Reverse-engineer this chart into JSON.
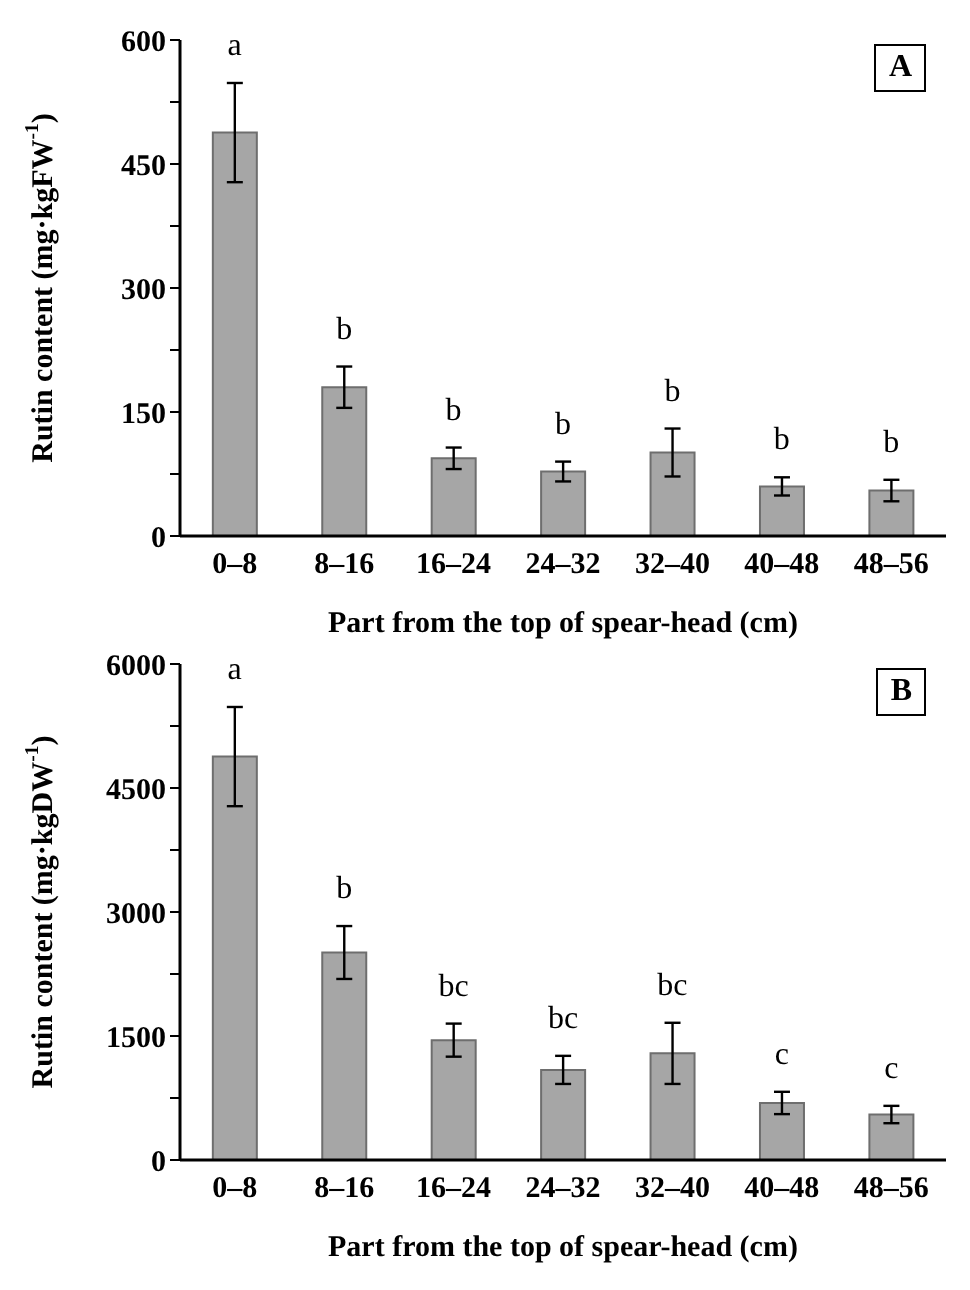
{
  "chart_data": [
    {
      "type": "bar",
      "title": "A",
      "xlabel": "Part from the top of spear-head (cm)",
      "ylabel": "Rutin content (mg·kgFW$^{-1}$)",
      "categories": [
        "0–8",
        "8–16",
        "16–24",
        "24–32",
        "32–40",
        "40–48",
        "48–56"
      ],
      "values": [
        488,
        180,
        94,
        78,
        101,
        60,
        55
      ],
      "errors": [
        60,
        25,
        13,
        12,
        29,
        11,
        13
      ],
      "color": "#a6a6a6",
      "ylim": [
        0,
        600
      ],
      "yticks": [
        0,
        {
          "value": 75,
          "label": null
        },
        150,
        {
          "value": 225,
          "label": null
        },
        300,
        {
          "value": 375,
          "label": null
        },
        450,
        {
          "value": 525,
          "label": null
        },
        600
      ],
      "annotations": [
        "a",
        "b",
        "b",
        "b",
        "b",
        "b",
        "b"
      ]
    },
    {
      "type": "bar",
      "title": "B",
      "xlabel": "Part from the top of spear-head (cm)",
      "ylabel": "Rutin content (mg·kgDW$^{-1}$)",
      "categories": [
        "0–8",
        "8–16",
        "16–24",
        "24–32",
        "32–40",
        "40–48",
        "48–56"
      ],
      "values": [
        4880,
        2510,
        1450,
        1090,
        1290,
        690,
        550
      ],
      "errors": [
        600,
        320,
        200,
        170,
        370,
        135,
        105
      ],
      "color": "#a6a6a6",
      "ylim": [
        0,
        6000
      ],
      "yticks": [
        0,
        {
          "value": 750,
          "label": null
        },
        1500,
        {
          "value": 2250,
          "label": null
        },
        3000,
        {
          "value": 3750,
          "label": null
        },
        4500,
        {
          "value": 5250,
          "label": null
        },
        6000
      ],
      "annotations": [
        "a",
        "b",
        "bc",
        "bc",
        "bc",
        "c",
        "c"
      ]
    }
  ]
}
